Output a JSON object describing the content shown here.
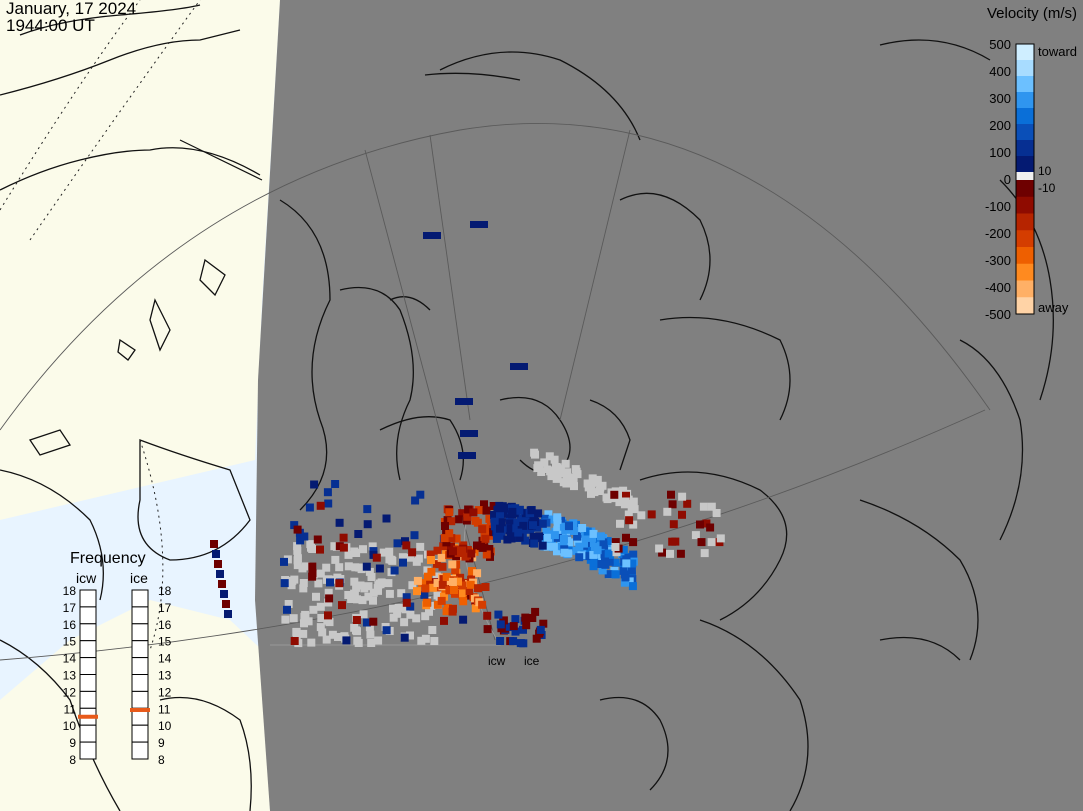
{
  "header": {
    "date": "January, 17 2024",
    "time": "1944:00 UT"
  },
  "velocity_scale": {
    "title": "Velocity (m/s)",
    "ticks": [
      "500",
      "400",
      "300",
      "200",
      "100",
      "0",
      "-100",
      "-200",
      "-300",
      "-400",
      "-500"
    ],
    "toward_label": "toward",
    "away_label": "away",
    "near_zero_pos": "10",
    "near_zero_neg": "-10",
    "colors_toward": [
      "#cfeeff",
      "#a8dcff",
      "#6cc0ff",
      "#2f95ef",
      "#0a6fd8",
      "#0a4fb8",
      "#062f92",
      "#041a72"
    ],
    "colors_away": [
      "#6e0000",
      "#8f0b00",
      "#b62400",
      "#d43d00",
      "#ee5f00",
      "#ff8a1f",
      "#ffb066",
      "#ffd3a6"
    ]
  },
  "frequency_panel": {
    "title": "Frequency",
    "columns": [
      {
        "name": "icw",
        "selected": 10.5
      },
      {
        "name": "ice",
        "selected": 10.9
      }
    ],
    "ticks": [
      "18",
      "17",
      "16",
      "15",
      "14",
      "13",
      "12",
      "11",
      "10",
      "9",
      "8"
    ],
    "marker_color": "#e85a1a"
  },
  "radars": {
    "labels": [
      "icw",
      "ice"
    ]
  },
  "map": {
    "night_color": "#808080",
    "day_color": "#fbfbea",
    "ocean_day_color": "#e8f4ff",
    "ground_scatter_color": "#c8c8c8"
  }
}
